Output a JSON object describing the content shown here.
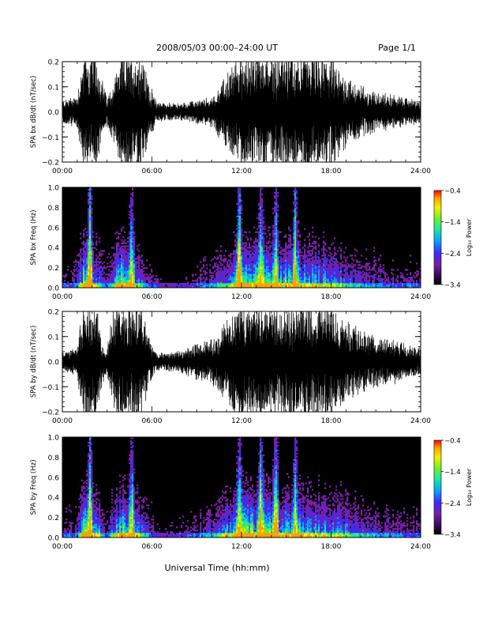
{
  "header": {
    "title": "2008/05/03  00:00–24:00 UT",
    "page": "Page 1/1"
  },
  "footer": {
    "xlabel": "Universal Time (hh:mm)"
  },
  "colors": {
    "background": "#ffffff",
    "trace": "#000000",
    "spectrogram_background": "#000000",
    "colormap": [
      "#000000",
      "#3a0a5a",
      "#7a1fa8",
      "#3a2cff",
      "#0aa0ff",
      "#19e6a8",
      "#6cf02a",
      "#f0f000",
      "#ffa000",
      "#ff0000"
    ]
  },
  "chart_data": [
    {
      "type": "line",
      "panel": "bx-waveform",
      "ylabel": "SPA bx dB/dt (nT/sec)",
      "ylim": [
        -0.2,
        0.2
      ],
      "yticks": [
        "0.2",
        "0.1",
        "0.0",
        "−0.1",
        "−0.2"
      ],
      "xlim": [
        "00:00",
        "24:00"
      ],
      "xticks": [
        "00:00",
        "06:00",
        "12:00",
        "18:00",
        "24:00"
      ],
      "series": [
        {
          "x_hours": [
            0,
            1,
            1.4,
            2.2,
            2.8,
            3,
            3.4,
            3.9,
            4.3,
            4.8,
            5.3,
            5.8,
            6.3,
            7,
            8,
            9,
            10,
            10.5,
            11,
            11.5,
            12,
            13,
            14,
            15,
            16,
            17,
            18,
            19,
            20,
            21,
            22,
            23,
            24
          ],
          "envelope": [
            0.04,
            0.06,
            0.2,
            0.2,
            0.09,
            0.05,
            0.1,
            0.2,
            0.2,
            0.2,
            0.2,
            0.1,
            0.04,
            0.03,
            0.03,
            0.04,
            0.05,
            0.09,
            0.13,
            0.17,
            0.2,
            0.2,
            0.2,
            0.2,
            0.2,
            0.2,
            0.18,
            0.12,
            0.09,
            0.07,
            0.06,
            0.05,
            0.04
          ]
        }
      ]
    },
    {
      "type": "heatmap",
      "panel": "bx-spectrogram",
      "ylabel": "SPA bx Freq (Hz)",
      "ylim": [
        0,
        1.0
      ],
      "yticks": [
        "1.0",
        "0.8",
        "0.6",
        "0.4",
        "0.2",
        "0.0"
      ],
      "xlim": [
        "00:00",
        "24:00"
      ],
      "xticks": [
        "00:00",
        "06:00",
        "12:00",
        "18:00",
        "24:00"
      ],
      "colorbar": {
        "label": "Log₁₀ Power",
        "ticks": [
          "−0.4",
          "−1.4",
          "−2.4",
          "−3.4"
        ],
        "range": [
          -3.4,
          -0.4
        ]
      },
      "activity": {
        "x_hours": [
          0,
          1,
          1.4,
          2.2,
          2.8,
          3,
          3.4,
          3.9,
          4.3,
          4.8,
          5.3,
          5.8,
          6.3,
          7,
          8,
          9,
          10,
          10.5,
          11,
          11.5,
          12,
          13,
          14,
          15,
          16,
          17,
          18,
          19,
          20,
          21,
          22,
          23,
          24
        ],
        "level": [
          0.25,
          0.3,
          0.9,
          0.7,
          0.35,
          0.3,
          0.5,
          0.9,
          0.8,
          0.7,
          0.5,
          0.35,
          0.2,
          0.15,
          0.15,
          0.25,
          0.35,
          0.45,
          0.55,
          0.65,
          0.95,
          0.8,
          0.85,
          0.8,
          0.75,
          0.7,
          0.6,
          0.5,
          0.4,
          0.35,
          0.3,
          0.28,
          0.25
        ]
      },
      "bursts_hours": [
        1.85,
        4.65,
        11.85,
        13.3,
        14.3,
        15.6
      ]
    },
    {
      "type": "line",
      "panel": "by-waveform",
      "ylabel": "SPA by dB/dt (nT/sec)",
      "ylim": [
        -0.2,
        0.2
      ],
      "yticks": [
        "0.2",
        "0.1",
        "0.0",
        "−0.1",
        "−0.2"
      ],
      "xlim": [
        "00:00",
        "24:00"
      ],
      "xticks": [
        "00:00",
        "06:00",
        "12:00",
        "18:00",
        "24:00"
      ],
      "series": [
        {
          "x_hours": [
            0,
            1,
            1.4,
            2.2,
            2.8,
            3,
            3.4,
            3.9,
            4.3,
            4.8,
            5.3,
            5.8,
            6.3,
            7,
            8,
            9,
            10,
            10.5,
            11,
            11.5,
            12,
            13,
            14,
            15,
            16,
            17,
            18,
            19,
            20,
            21,
            22,
            23,
            24
          ],
          "envelope": [
            0.03,
            0.05,
            0.2,
            0.2,
            0.06,
            0.04,
            0.2,
            0.2,
            0.2,
            0.2,
            0.2,
            0.08,
            0.03,
            0.03,
            0.04,
            0.06,
            0.08,
            0.11,
            0.15,
            0.18,
            0.2,
            0.2,
            0.2,
            0.2,
            0.2,
            0.2,
            0.2,
            0.14,
            0.11,
            0.09,
            0.08,
            0.06,
            0.05
          ]
        }
      ]
    },
    {
      "type": "heatmap",
      "panel": "by-spectrogram",
      "ylabel": "SPA by Freq (Hz)",
      "ylim": [
        0,
        1.0
      ],
      "yticks": [
        "1.0",
        "0.8",
        "0.6",
        "0.4",
        "0.2",
        "0.0"
      ],
      "xlim": [
        "00:00",
        "24:00"
      ],
      "xticks": [
        "00:00",
        "06:00",
        "12:00",
        "18:00",
        "24:00"
      ],
      "colorbar": {
        "label": "Log₁₀ Power",
        "ticks": [
          "−0.4",
          "−1.4",
          "−2.4",
          "−3.4"
        ],
        "range": [
          -3.4,
          -0.4
        ]
      },
      "activity": {
        "x_hours": [
          0,
          1,
          1.4,
          2.2,
          2.8,
          3,
          3.4,
          3.9,
          4.3,
          4.8,
          5.3,
          5.8,
          6.3,
          7,
          8,
          9,
          10,
          10.5,
          11,
          11.5,
          12,
          13,
          14,
          15,
          16,
          17,
          18,
          19,
          20,
          21,
          22,
          23,
          24
        ],
        "level": [
          0.25,
          0.3,
          0.9,
          0.7,
          0.35,
          0.3,
          0.55,
          0.9,
          0.85,
          0.7,
          0.5,
          0.35,
          0.2,
          0.15,
          0.2,
          0.3,
          0.4,
          0.5,
          0.6,
          0.7,
          0.95,
          0.85,
          0.85,
          0.8,
          0.75,
          0.7,
          0.65,
          0.55,
          0.45,
          0.38,
          0.32,
          0.3,
          0.25
        ]
      },
      "bursts_hours": [
        1.85,
        4.65,
        11.85,
        13.3,
        14.3,
        15.6
      ]
    }
  ]
}
